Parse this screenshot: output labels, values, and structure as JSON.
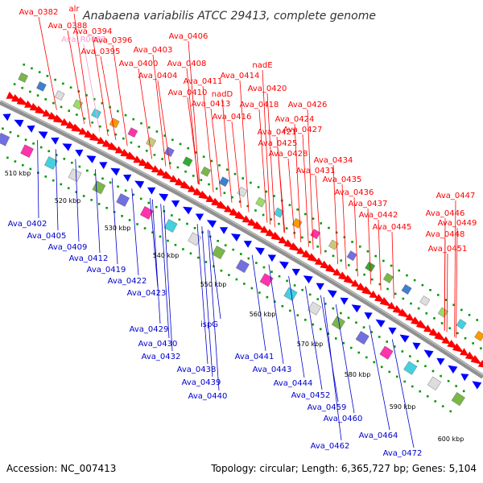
{
  "title": "Anabaena variabilis ATCC 29413, complete genome",
  "accession": "Accession: NC_007413",
  "topology": "Topology: circular; Length: 6,365,727 bp; Genes: 5,104",
  "colors": {
    "backbone": "#909090",
    "forward_label": "#ff0000",
    "reverse_label": "#0000cc",
    "rna_label": "#ff99cc",
    "forward_feature": "#ff0000",
    "reverse_feature": "#0000ff",
    "dots": "#009900"
  },
  "scale_labels": [
    {
      "label": "510 kbp",
      "kb": 510
    },
    {
      "label": "520 kbp",
      "kb": 520
    },
    {
      "label": "530 kbp",
      "kb": 530
    },
    {
      "label": "540 kbp",
      "kb": 540
    },
    {
      "label": "550 kbp",
      "kb": 550
    },
    {
      "label": "560 kbp",
      "kb": 560
    },
    {
      "label": "570 kbp",
      "kb": 570
    },
    {
      "label": "580 kbp",
      "kb": 580
    },
    {
      "label": "590 kbp",
      "kb": 590
    },
    {
      "label": "600 kbp",
      "kb": 600
    }
  ],
  "forward_genes": [
    "Ava_0382",
    "alr",
    "Ava_0388",
    "Ava_R0002",
    "Ava_0394",
    "Ava_0396",
    "Ava_0395",
    "Ava_0406",
    "Ava_0403",
    "Ava_0400",
    "Ava_0408",
    "Ava_0404",
    "nadE",
    "Ava_0414",
    "Ava_0411",
    "Ava_0420",
    "Ava_0410",
    "nadD",
    "Ava_0418",
    "Ava_0426",
    "Ava_0413",
    "Ava_0416",
    "Ava_0424",
    "Ava_0421",
    "Ava_0427",
    "Ava_0425",
    "Ava_0428",
    "Ava_0434",
    "Ava_0431",
    "Ava_0435",
    "Ava_0436",
    "Ava_0437",
    "Ava_0447",
    "Ava_0446",
    "Ava_0442",
    "Ava_0449",
    "Ava_0445",
    "Ava_0448",
    "Ava_0451"
  ],
  "reverse_genes": [
    "Ava_0402",
    "Ava_0405",
    "Ava_0409",
    "Ava_0412",
    "Ava_0419",
    "Ava_0422",
    "Ava_0423",
    "Ava_0429",
    "ispG",
    "Ava_0430",
    "Ava_0432",
    "Ava_0438",
    "Ava_0441",
    "Ava_0439",
    "Ava_0443",
    "Ava_0440",
    "Ava_0444",
    "Ava_0452",
    "Ava_0459",
    "Ava_0460",
    "Ava_0464",
    "Ava_0462",
    "Ava_0472"
  ]
}
